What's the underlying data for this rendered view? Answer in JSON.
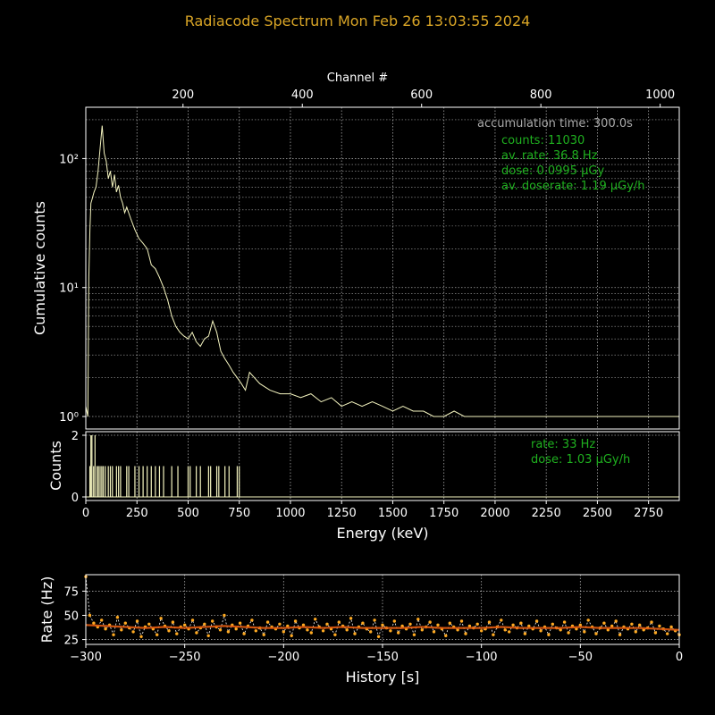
{
  "figure": {
    "title": "Radiacode Spectrum   Mon Feb 26 13:03:55 2024",
    "title_color": "#d9a526",
    "background": "#000000",
    "foreground": "#ffffff",
    "grid_color": "#e0e0e0"
  },
  "chart_data": [
    {
      "id": "spectrum-cumulative",
      "type": "line",
      "title": "",
      "xlabel": "Energy (keV)",
      "ylabel": "Cumulative counts",
      "secondary_xlabel": "Channel #",
      "xlim": [
        0,
        2900
      ],
      "yscale": "log",
      "ylim": [
        0.8,
        250
      ],
      "xticks": [
        0,
        250,
        500,
        750,
        1000,
        1250,
        1500,
        1750,
        2000,
        2250,
        2500,
        2750
      ],
      "secondary_xticks": [
        200,
        400,
        600,
        800,
        1000
      ],
      "secondary_xlim": [
        37,
        1032
      ],
      "yticks": [
        1,
        10,
        100
      ],
      "ytick_labels": [
        "10⁰",
        "10¹",
        "10²"
      ],
      "grid": true,
      "color": "#f5f5c0",
      "series": [
        {
          "x": [
            0,
            10,
            15,
            20,
            25,
            30,
            40,
            50,
            60,
            70,
            80,
            90,
            100,
            110,
            120,
            130,
            140,
            150,
            160,
            170,
            180,
            190,
            200,
            220,
            240,
            260,
            280,
            300,
            320,
            340,
            360,
            380,
            400,
            420,
            440,
            460,
            480,
            500,
            520,
            540,
            560,
            580,
            600,
            620,
            640,
            660,
            680,
            700,
            720,
            740,
            760,
            780,
            800,
            850,
            900,
            950,
            1000,
            1050,
            1100,
            1150,
            1200,
            1250,
            1300,
            1350,
            1400,
            1450,
            1500,
            1550,
            1600,
            1650,
            1700,
            1750,
            1800,
            1850,
            1900,
            1950,
            2000,
            2100,
            2200,
            2300,
            2400,
            2500,
            2600,
            2700,
            2800,
            2900
          ],
          "y": [
            1.2,
            1.0,
            12,
            28,
            45,
            48,
            55,
            60,
            80,
            120,
            180,
            110,
            95,
            70,
            80,
            60,
            75,
            55,
            62,
            50,
            45,
            38,
            42,
            34,
            28,
            24,
            22,
            20,
            15,
            14,
            12,
            10,
            8,
            6,
            5,
            4.5,
            4.2,
            4.0,
            4.5,
            3.8,
            3.5,
            4.0,
            4.2,
            5.5,
            4.5,
            3.2,
            2.8,
            2.5,
            2.2,
            2.0,
            1.8,
            1.6,
            2.2,
            1.8,
            1.6,
            1.5,
            1.5,
            1.4,
            1.5,
            1.3,
            1.4,
            1.2,
            1.3,
            1.2,
            1.3,
            1.2,
            1.1,
            1.2,
            1.1,
            1.1,
            1.0,
            1.0,
            1.1,
            1.0,
            1.0,
            1.0,
            1.0,
            1.0,
            1.0,
            1.0,
            1.0,
            1.0,
            1.0,
            1.0,
            1.0,
            1.0
          ]
        }
      ],
      "annotations": {
        "accumulation": "accumulation time: 300.0s",
        "accumulation_color": "#aaaaaa",
        "stats_color": "#1fb01f",
        "stats": [
          "counts: 11030",
          "av. rate: 36.8 Hz",
          "dose: 0.0995 μGy",
          "av. doserate: 1.19 μGy/h"
        ]
      }
    },
    {
      "id": "spectrum-instant",
      "type": "bar",
      "xlabel": "Energy (keV)",
      "ylabel": "Counts",
      "xlim": [
        0,
        2900
      ],
      "ylim": [
        0,
        2
      ],
      "xticks": [
        0,
        250,
        500,
        750,
        1000,
        1250,
        1500,
        1750,
        2000,
        2250,
        2500,
        2750
      ],
      "yticks": [
        0,
        2
      ],
      "grid": true,
      "color": "#f5f5c0",
      "x": [
        20,
        25,
        30,
        38,
        45,
        55,
        62,
        70,
        78,
        85,
        95,
        110,
        120,
        130,
        150,
        160,
        170,
        200,
        210,
        240,
        260,
        280,
        300,
        320,
        340,
        360,
        380,
        420,
        450,
        500,
        510,
        540,
        560,
        600,
        610,
        640,
        650,
        680,
        700,
        740,
        750
      ],
      "values": [
        1,
        2,
        2,
        1,
        2,
        1,
        1,
        1,
        1,
        1,
        1,
        1,
        1,
        1,
        1,
        1,
        1,
        1,
        1,
        1,
        1,
        1,
        1,
        1,
        1,
        1,
        1,
        1,
        1,
        1,
        1,
        1,
        1,
        1,
        1,
        1,
        1,
        1,
        1,
        1,
        1
      ],
      "annotations": {
        "stats_color": "#1fb01f",
        "stats": [
          "rate: 33 Hz",
          "dose: 1.03 μGy/h"
        ]
      }
    },
    {
      "id": "rate-history",
      "type": "line",
      "xlabel": "History [s]",
      "ylabel": "Rate (Hz)",
      "xlim": [
        -300,
        0
      ],
      "ylim": [
        20,
        92
      ],
      "xticks": [
        -300,
        -250,
        -200,
        -150,
        -100,
        -50,
        0
      ],
      "xtick_labels": [
        "−300",
        "−250",
        "−200",
        "−150",
        "−100",
        "−50",
        "0"
      ],
      "yticks": [
        25,
        50,
        75
      ],
      "grid": true,
      "series": [
        {
          "name": "",
          "color": "#ffffff",
          "x": [
            -300,
            -298,
            -296,
            -294,
            -292,
            -290,
            -288,
            -286,
            -284,
            -282,
            -280,
            -278,
            -276,
            -274,
            -272,
            -270,
            -268,
            -266,
            -264,
            -262,
            -260,
            -258,
            -256,
            -254,
            -252,
            -250,
            -248,
            -246,
            -244,
            -242,
            -240,
            -238,
            -236,
            -234,
            -232,
            -230,
            -228,
            -226,
            -224,
            -222,
            -220,
            -218,
            -216,
            -214,
            -212,
            -210,
            -208,
            -206,
            -204,
            -202,
            -200,
            -198,
            -196,
            -194,
            -192,
            -190,
            -188,
            -186,
            -184,
            -182,
            -180,
            -178,
            -176,
            -174,
            -172,
            -170,
            -168,
            -166,
            -164,
            -162,
            -160,
            -158,
            -156,
            -154,
            -152,
            -150,
            -148,
            -146,
            -144,
            -142,
            -140,
            -138,
            -136,
            -134,
            -132,
            -130,
            -128,
            -126,
            -124,
            -122,
            -120,
            -118,
            -116,
            -114,
            -112,
            -110,
            -108,
            -106,
            -104,
            -102,
            -100,
            -98,
            -96,
            -94,
            -92,
            -90,
            -88,
            -86,
            -84,
            -82,
            -80,
            -78,
            -76,
            -74,
            -72,
            -70,
            -68,
            -66,
            -64,
            -62,
            -60,
            -58,
            -56,
            -54,
            -52,
            -50,
            -48,
            -46,
            -44,
            -42,
            -40,
            -38,
            -36,
            -34,
            -32,
            -30,
            -28,
            -26,
            -24,
            -22,
            -20,
            -18,
            -16,
            -14,
            -12,
            -10,
            -8,
            -6,
            -4,
            -2,
            0
          ],
          "y": [
            90,
            50,
            42,
            38,
            45,
            36,
            40,
            30,
            48,
            35,
            42,
            37,
            33,
            44,
            28,
            38,
            41,
            36,
            30,
            47,
            39,
            34,
            43,
            31,
            38,
            40,
            36,
            45,
            32,
            37,
            41,
            29,
            44,
            38,
            35,
            50,
            33,
            40,
            36,
            42,
            31,
            39,
            45,
            34,
            37,
            30,
            43,
            38,
            36,
            41,
            33,
            39,
            29,
            44,
            37,
            40,
            35,
            32,
            46,
            38,
            34,
            41,
            36,
            30,
            43,
            39,
            35,
            47,
            31,
            38,
            42,
            36,
            33,
            45,
            28,
            40,
            37,
            34,
            44,
            32,
            39,
            36,
            41,
            30,
            46,
            35,
            38,
            43,
            33,
            40,
            36,
            29,
            42,
            38,
            35,
            44,
            31,
            39,
            37,
            41,
            34,
            36,
            43,
            30,
            38,
            45,
            35,
            33,
            40,
            37,
            42,
            31,
            39,
            36,
            44,
            34,
            38,
            30,
            41,
            37,
            35,
            43,
            32,
            39,
            36,
            40,
            33,
            45,
            38,
            31,
            37,
            42,
            35,
            39,
            44,
            30,
            38,
            36,
            41,
            33,
            40,
            35,
            37,
            43,
            32,
            39,
            36,
            31,
            38,
            34,
            30
          ]
        },
        {
          "name": "",
          "color": "#ff9900",
          "x": [
            -300,
            -290,
            -280,
            -270,
            -260,
            -250,
            -240,
            -230,
            -220,
            -210,
            -200,
            -190,
            -180,
            -170,
            -160,
            -150,
            -140,
            -130,
            -120,
            -110,
            -100,
            -90,
            -80,
            -70,
            -60,
            -50,
            -40,
            -30,
            -20,
            -10,
            0
          ],
          "y": [
            40,
            39,
            38,
            37,
            38,
            37,
            38,
            39,
            38,
            37,
            37,
            38,
            37,
            38,
            37,
            37,
            37,
            38,
            37,
            37,
            37,
            38,
            37,
            37,
            37,
            38,
            37,
            37,
            37,
            36,
            35
          ]
        }
      ]
    }
  ]
}
